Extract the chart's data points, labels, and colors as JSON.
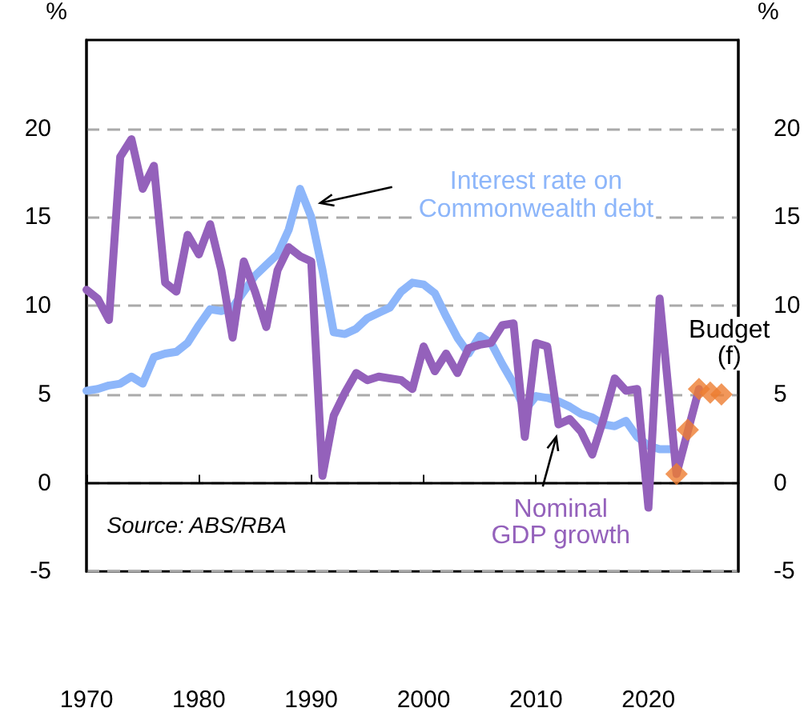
{
  "chart_data": {
    "type": "line",
    "ylabel": "%",
    "y2label": "%",
    "xlim": [
      1970,
      2028
    ],
    "xticks": [
      1970,
      1980,
      1990,
      2000,
      2010,
      2020
    ],
    "ylim": [
      -5,
      25
    ],
    "yticks": [
      -5,
      0,
      5,
      10,
      15,
      20
    ],
    "y2lim": [
      -5,
      25
    ],
    "y2ticks": [
      -5,
      0,
      5,
      10,
      15,
      20
    ],
    "grid": "y",
    "legend": false,
    "marker": "none",
    "line_style": "solid",
    "annotations": [
      "Budget (f)",
      "Source: ABS/RBA"
    ],
    "series": [
      {
        "name": "Interest rate on Commonwealth debt",
        "color": "#8db6fa",
        "x": [
          1970,
          1971,
          1972,
          1973,
          1974,
          1975,
          1976,
          1977,
          1978,
          1979,
          1980,
          1981,
          1982,
          1983,
          1984,
          1985,
          1986,
          1987,
          1988,
          1989,
          1990,
          1991,
          1992,
          1993,
          1994,
          1995,
          1996,
          1997,
          1998,
          1999,
          2000,
          2001,
          2002,
          2003,
          2004,
          2005,
          2006,
          2007,
          2008,
          2009,
          2010,
          2011,
          2012,
          2013,
          2014,
          2015,
          2016,
          2017,
          2018,
          2019,
          2020,
          2021,
          2022
        ],
        "values": [
          5.2,
          5.3,
          5.5,
          5.6,
          6.0,
          5.6,
          7.1,
          7.3,
          7.4,
          7.9,
          8.9,
          9.8,
          9.7,
          9.9,
          10.8,
          11.7,
          12.3,
          12.9,
          14.3,
          16.6,
          15.0,
          12.0,
          8.5,
          8.4,
          8.7,
          9.3,
          9.6,
          9.9,
          10.8,
          11.3,
          11.2,
          10.7,
          9.4,
          8.2,
          7.3,
          8.3,
          7.9,
          6.7,
          5.6,
          4.1,
          4.9,
          4.8,
          4.6,
          4.3,
          3.9,
          3.7,
          3.3,
          3.2,
          3.5,
          2.6,
          2.1,
          1.9,
          1.9
        ]
      },
      {
        "name": "Nominal GDP growth",
        "color": "#9461bb",
        "x": [
          1970,
          1971,
          1972,
          1973,
          1974,
          1975,
          1976,
          1977,
          1978,
          1979,
          1980,
          1981,
          1982,
          1983,
          1984,
          1985,
          1986,
          1987,
          1988,
          1989,
          1990,
          1991,
          1992,
          1993,
          1994,
          1995,
          1996,
          1997,
          1998,
          1999,
          2000,
          2001,
          2002,
          2003,
          2004,
          2005,
          2006,
          2007,
          2008,
          2009,
          2010,
          2011,
          2012,
          2013,
          2014,
          2015,
          2016,
          2017,
          2018,
          2019,
          2020,
          2021,
          2022.5,
          2024.5
        ],
        "values": [
          10.9,
          10.4,
          9.2,
          18.4,
          19.4,
          16.6,
          17.9,
          11.3,
          10.8,
          14.0,
          12.9,
          14.6,
          12.0,
          8.2,
          12.5,
          10.8,
          8.8,
          12.0,
          13.3,
          12.8,
          12.5,
          0.4,
          3.8,
          5.1,
          6.2,
          5.8,
          6.0,
          5.9,
          5.8,
          5.3,
          7.7,
          6.3,
          7.3,
          6.2,
          7.6,
          7.8,
          7.9,
          8.9,
          9.0,
          2.6,
          7.9,
          7.7,
          3.3,
          3.6,
          2.9,
          1.6,
          3.6,
          5.9,
          5.2,
          5.3,
          -1.4,
          10.4,
          0.5,
          5.3
        ]
      },
      {
        "type": "scatter",
        "marker": "diamond",
        "color": "#ed7d31",
        "x": [
          2022.5,
          2023.5,
          2024.5,
          2025.5,
          2026.5
        ],
        "values": [
          0.5,
          3.0,
          5.3,
          5.1,
          5.0
        ]
      }
    ]
  }
}
